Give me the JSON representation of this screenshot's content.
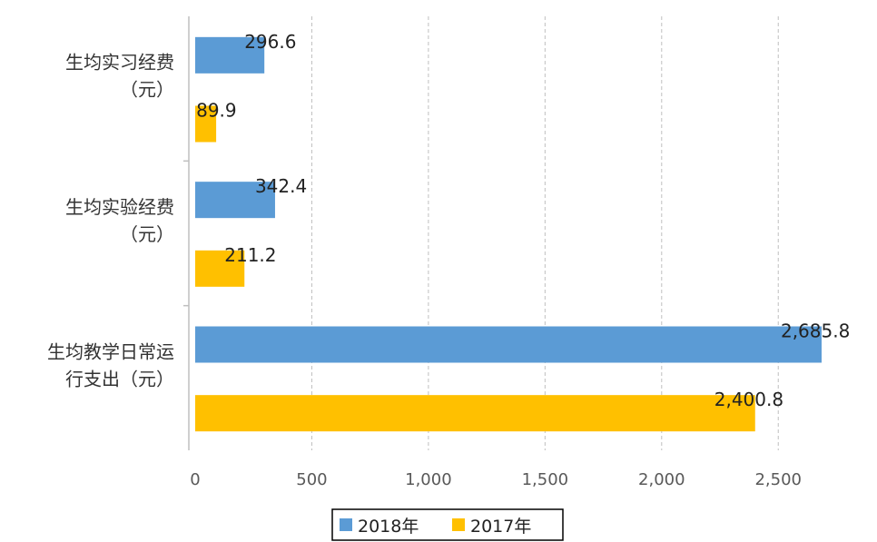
{
  "chart_data": {
    "type": "bar",
    "orientation": "horizontal",
    "categories": [
      [
        "生均实习经费",
        "（元）"
      ],
      [
        "生均实验经费",
        "（元）"
      ],
      [
        "生均教学日常运",
        "行支出（元）"
      ]
    ],
    "series": [
      {
        "name": "2018年",
        "color": "#5B9BD5",
        "values": [
          296.6,
          342.4,
          2685.8
        ],
        "labels": [
          "296.6",
          "342.4",
          "2,685.8"
        ]
      },
      {
        "name": "2017年",
        "color": "#FFC000",
        "values": [
          89.9,
          211.2,
          2400.8
        ],
        "labels": [
          "89.9",
          "211.2",
          "2,400.8"
        ]
      }
    ],
    "xlim": [
      0,
      2900
    ],
    "xticks": [
      0,
      500,
      1000,
      1500,
      2000,
      2500
    ],
    "xtick_labels": [
      "0",
      "500",
      "1,000",
      "1,500",
      "2,000",
      "2,500"
    ],
    "grid": "vertical-dashed",
    "legend": "bottom"
  }
}
